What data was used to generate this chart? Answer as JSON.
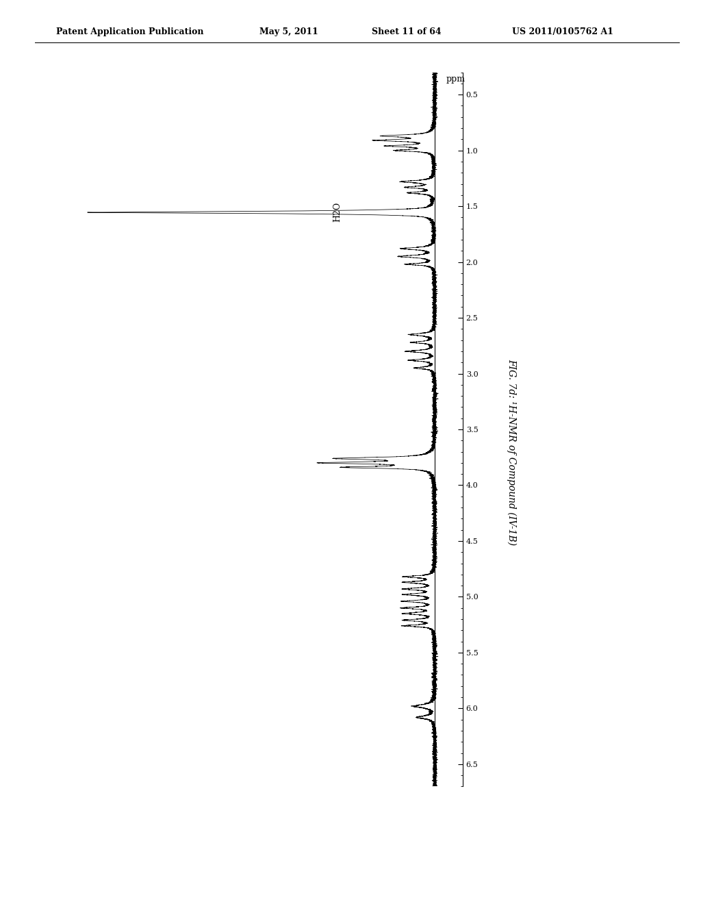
{
  "title_header": "Patent Application Publication",
  "date": "May 5, 2011",
  "sheet": "Sheet 11 of 64",
  "patent_num": "US 2011/0105762 A1",
  "figure_label": "FIG. 7d:",
  "figure_caption": " ¹H-NMR of Compound (IV-1B)",
  "y_ticks": [
    0.5,
    1.0,
    1.5,
    2.0,
    2.5,
    3.0,
    3.5,
    4.0,
    4.5,
    5.0,
    5.5,
    6.0,
    6.5
  ],
  "y_tick_labels": [
    "0.5",
    "1.0",
    "1.5",
    "2.0",
    "2.5",
    "3.0",
    "3.5",
    "4.0",
    "4.5",
    "5.0",
    "5.5",
    "6.0",
    "6.5"
  ],
  "y_label": "ppm",
  "h2o_label": "H2O",
  "background_color": "#ffffff",
  "line_color": "#000000"
}
